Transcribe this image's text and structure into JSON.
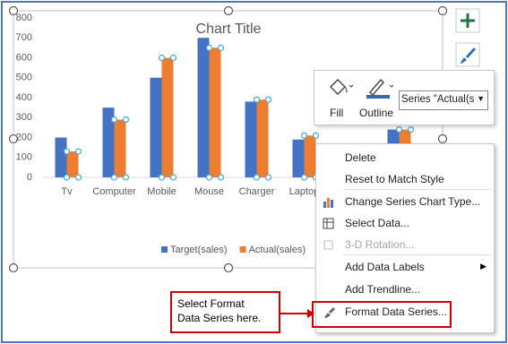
{
  "chart_data": {
    "type": "bar",
    "title": "Chart Title",
    "categories": [
      "Tv",
      "Computer",
      "Mobile",
      "Mouse",
      "Charger",
      "Laptop",
      null,
      null
    ],
    "series": [
      {
        "name": "Target(sales)",
        "color": "#4472c4",
        "values": [
          200,
          350,
          500,
          700,
          380,
          190,
          null,
          240
        ]
      },
      {
        "name": "Actual(sales)",
        "color": "#ed7d31",
        "values": [
          130,
          290,
          600,
          650,
          390,
          210,
          null,
          240
        ]
      }
    ],
    "ylim": [
      0,
      800
    ],
    "yticks": [
      0,
      100,
      200,
      300,
      400,
      500,
      600,
      700,
      800
    ],
    "grid": false,
    "legend": "bottom"
  },
  "toolbar": {
    "fill": "Fill",
    "outline": "Outline",
    "series_selector": "Series \"Actual(s"
  },
  "context_menu": {
    "items": [
      "Delete",
      "Reset to Match Style",
      "Change Series Chart Type...",
      "Select Data...",
      "3-D Rotation...",
      "Add Data Labels",
      "Add Trendline...",
      "Format Data Series..."
    ]
  },
  "callout": {
    "lines": [
      "Select Format",
      "Data Series here."
    ]
  }
}
